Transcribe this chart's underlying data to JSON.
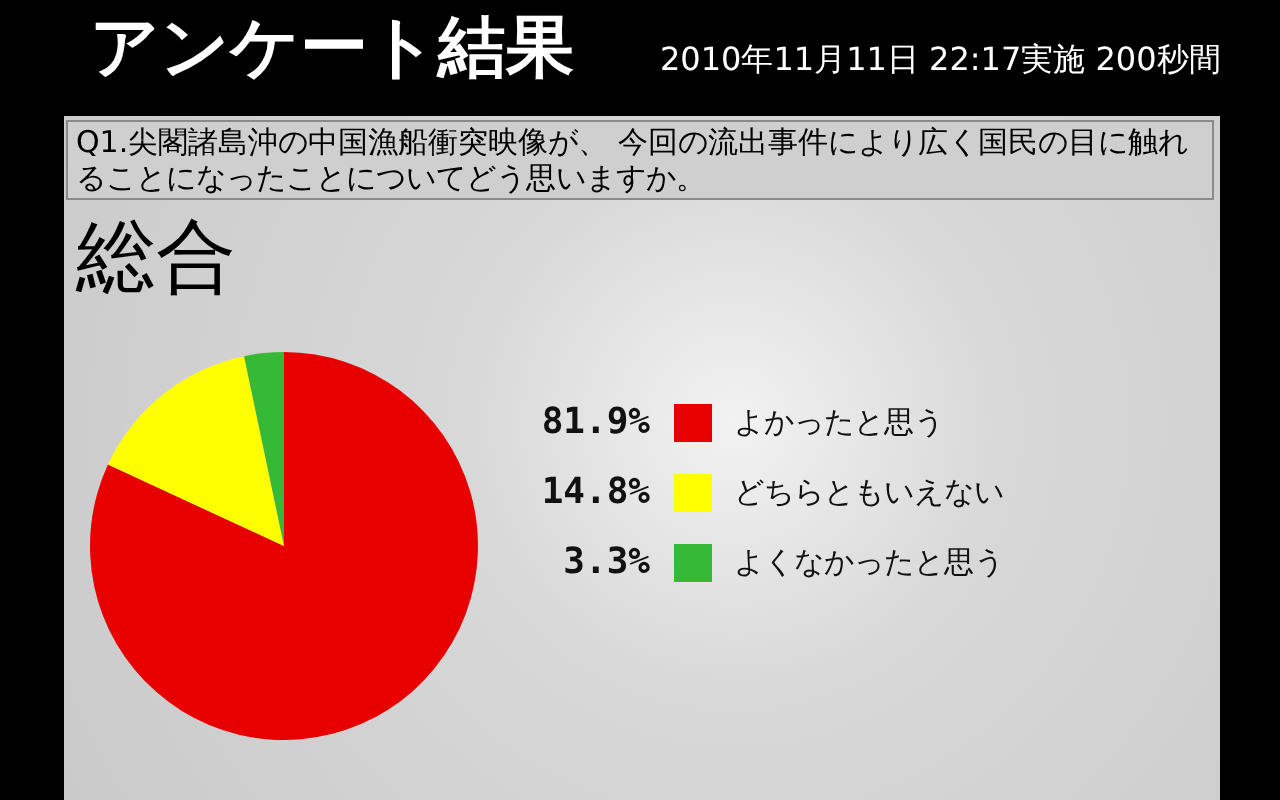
{
  "chart_data": {
    "type": "pie",
    "title": "アンケート結果",
    "subtitle": "Q1.尖閣諸島沖の中国漁船衝突映像が、 今回の流出事件により広く国民の目に触れることになったことについてどう思いますか。",
    "annotations": [
      "2010年11月11日 22:17実施 200秒間",
      "総合"
    ],
    "categories": [
      "よかったと思う",
      "どちらともいえない",
      "よくなかったと思う"
    ],
    "values": [
      81.9,
      14.8,
      3.3
    ],
    "colors": [
      "#e80000",
      "#ffff00",
      "#36b936"
    ],
    "value_labels": [
      "81.9%",
      "14.8%",
      "3.3%"
    ],
    "legend": "right"
  }
}
